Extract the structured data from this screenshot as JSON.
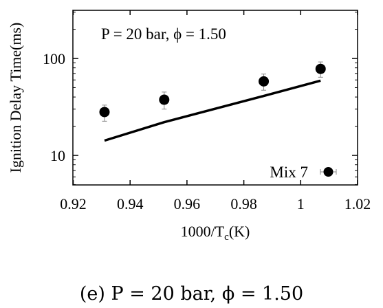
{
  "chart_data": {
    "type": "scatter",
    "annotation": "P = 20 bar, ϕ = 1.50",
    "xlabel_main": "1000/T",
    "xlabel_sub": "c",
    "xlabel_tail": "(K)",
    "ylabel": "Ignition Delay Time(ms)",
    "xlim": [
      0.92,
      1.02
    ],
    "ylim": [
      5,
      300
    ],
    "yscale": "log",
    "grid": false,
    "legend_position": "bottom-right",
    "xticks": [
      0.92,
      0.94,
      0.96,
      0.98,
      1.0,
      1.02
    ],
    "xtick_labels": [
      "0.92",
      "0.94",
      "0.96",
      "0.98",
      "1",
      "1.02"
    ],
    "yticks": [
      10,
      100
    ],
    "ytick_labels": [
      "10",
      "100"
    ],
    "series": [
      {
        "name": "Mix 7",
        "kind": "points",
        "color": "#000000",
        "points": [
          {
            "x": 0.931,
            "y": 28,
            "err_low": 22.5,
            "err_high": 33
          },
          {
            "x": 0.952,
            "y": 37.5,
            "err_low": 30,
            "err_high": 45
          },
          {
            "x": 0.987,
            "y": 58,
            "err_low": 47,
            "err_high": 69
          },
          {
            "x": 1.007,
            "y": 78,
            "err_low": 64,
            "err_high": 92
          }
        ]
      },
      {
        "kind": "line",
        "color": "#000000",
        "points": [
          {
            "x": 0.931,
            "y": 14.2
          },
          {
            "x": 0.952,
            "y": 22
          },
          {
            "x": 0.987,
            "y": 41
          },
          {
            "x": 1.007,
            "y": 59
          }
        ]
      }
    ]
  },
  "caption": "(e) P = 20 bar, ϕ = 1.50"
}
